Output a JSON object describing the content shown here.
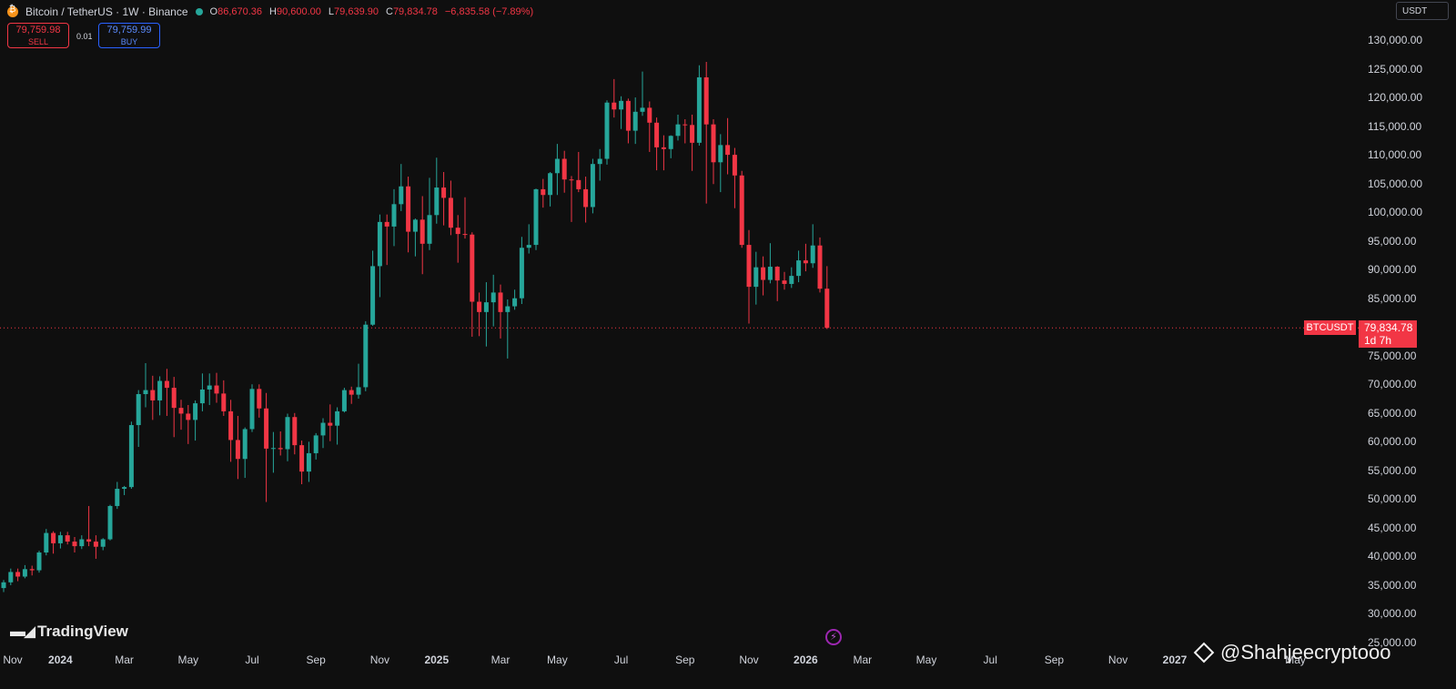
{
  "header": {
    "symbol": "Bitcoin / TetherUS · 1W · Binance",
    "ohlc": [
      {
        "k": "O",
        "v": "86,670.36"
      },
      {
        "k": "H",
        "v": "90,600.00"
      },
      {
        "k": "L",
        "v": "79,639.90"
      },
      {
        "k": "C",
        "v": "79,834.78"
      }
    ],
    "change": "−6,835.58 (−7.89%)"
  },
  "trade": {
    "sell_price": "79,759.98",
    "sell_label": "SELL",
    "spread": "0.01",
    "buy_price": "79,759.99",
    "buy_label": "BUY"
  },
  "currency": "USDT",
  "last_price": {
    "symbol": "BTCUSDT",
    "value": "79,834.78",
    "countdown": "1d 7h"
  },
  "branding": {
    "logo_text": "TradingView",
    "watermark": "@Shahjeecryptooo"
  },
  "colors": {
    "up": "#26a69a",
    "down": "#f23645",
    "background": "#0f0f0f",
    "buy": "#2962ff"
  },
  "chart_data": {
    "type": "candlestick",
    "interval": "1W",
    "y_axis": {
      "labels": [
        "130,000.00",
        "125,000.00",
        "120,000.00",
        "115,000.00",
        "110,000.00",
        "105,000.00",
        "100,000.00",
        "95,000.00",
        "90,000.00",
        "85,000.00",
        "75,000.00",
        "70,000.00",
        "65,000.00",
        "60,000.00",
        "55,000.00",
        "50,000.00",
        "45,000.00",
        "40,000.00",
        "35,000.00",
        "30,000.00",
        "25,000.00"
      ],
      "values": [
        130000,
        125000,
        120000,
        115000,
        110000,
        105000,
        100000,
        95000,
        90000,
        85000,
        75000,
        70000,
        65000,
        60000,
        55000,
        50000,
        45000,
        40000,
        35000,
        30000,
        25000
      ],
      "range": [
        25000,
        130000
      ]
    },
    "x_axis": {
      "labels": [
        {
          "text": "Nov",
          "bold": false,
          "week": -1
        },
        {
          "text": "2024",
          "bold": true,
          "week": 8
        },
        {
          "text": "Mar",
          "bold": false,
          "week": 17
        },
        {
          "text": "May",
          "bold": false,
          "week": 26
        },
        {
          "text": "Jul",
          "bold": false,
          "week": 35
        },
        {
          "text": "Sep",
          "bold": false,
          "week": 44
        },
        {
          "text": "Nov",
          "bold": false,
          "week": 53
        },
        {
          "text": "2025",
          "bold": true,
          "week": 61
        },
        {
          "text": "Mar",
          "bold": false,
          "week": 70
        },
        {
          "text": "May",
          "bold": false,
          "week": 78
        },
        {
          "text": "Jul",
          "bold": false,
          "week": 87
        },
        {
          "text": "Sep",
          "bold": false,
          "week": 96
        },
        {
          "text": "Nov",
          "bold": false,
          "week": 105
        },
        {
          "text": "2026",
          "bold": true,
          "week": 113
        },
        {
          "text": "Mar",
          "bold": false,
          "week": 121
        },
        {
          "text": "May",
          "bold": false,
          "week": 130
        },
        {
          "text": "Jul",
          "bold": false,
          "week": 139
        },
        {
          "text": "Sep",
          "bold": false,
          "week": 148
        },
        {
          "text": "Nov",
          "bold": false,
          "week": 157
        },
        {
          "text": "2027",
          "bold": true,
          "week": 165
        },
        {
          "text": "May",
          "bold": false,
          "week": 182
        }
      ]
    },
    "last_price": 79834.78,
    "candles": [
      [
        34500,
        35900,
        33800,
        35500
      ],
      [
        35500,
        37900,
        35000,
        37300
      ],
      [
        37300,
        37900,
        35700,
        36500
      ],
      [
        36500,
        38500,
        36200,
        37800
      ],
      [
        37800,
        38400,
        36700,
        37600
      ],
      [
        37600,
        41000,
        37200,
        40700
      ],
      [
        40700,
        44800,
        40200,
        44100
      ],
      [
        44100,
        44400,
        40500,
        42300
      ],
      [
        42300,
        44300,
        41400,
        43700
      ],
      [
        43700,
        44300,
        42100,
        42600
      ],
      [
        42600,
        43400,
        40700,
        41800
      ],
      [
        41800,
        43700,
        41300,
        43000
      ],
      [
        43000,
        48800,
        41800,
        42600
      ],
      [
        42600,
        43700,
        39600,
        41700
      ],
      [
        41700,
        43200,
        41100,
        43000
      ],
      [
        43000,
        49000,
        42800,
        48800
      ],
      [
        48800,
        53000,
        48300,
        51800
      ],
      [
        51800,
        52300,
        50700,
        52100
      ],
      [
        52100,
        63500,
        51800,
        62900
      ],
      [
        62900,
        69000,
        59100,
        68300
      ],
      [
        68300,
        73700,
        66000,
        69000
      ],
      [
        69000,
        71500,
        63800,
        67200
      ],
      [
        67200,
        71400,
        64600,
        70600
      ],
      [
        70600,
        72700,
        64500,
        69400
      ],
      [
        69400,
        71300,
        60800,
        65900
      ],
      [
        65900,
        67300,
        62100,
        64900
      ],
      [
        64900,
        66400,
        59600,
        63800
      ],
      [
        63800,
        67200,
        60200,
        66700
      ],
      [
        66700,
        71900,
        65300,
        69100
      ],
      [
        69100,
        71900,
        66400,
        69800
      ],
      [
        69800,
        72000,
        66800,
        68400
      ],
      [
        68400,
        70700,
        64500,
        65300
      ],
      [
        65300,
        67300,
        56500,
        60300
      ],
      [
        60300,
        64500,
        53500,
        57000
      ],
      [
        57000,
        62500,
        53700,
        62200
      ],
      [
        62200,
        70000,
        61700,
        69200
      ],
      [
        69200,
        70000,
        64200,
        65800
      ],
      [
        65800,
        68500,
        49500,
        58800
      ],
      [
        58800,
        61700,
        54600,
        58900
      ],
      [
        58900,
        61800,
        57600,
        58700
      ],
      [
        58700,
        64900,
        56600,
        64300
      ],
      [
        64300,
        65000,
        57800,
        59400
      ],
      [
        59400,
        60200,
        52600,
        54800
      ],
      [
        54800,
        60000,
        53000,
        58000
      ],
      [
        58000,
        61500,
        56900,
        61100
      ],
      [
        61100,
        64100,
        58900,
        63300
      ],
      [
        63300,
        66500,
        60100,
        62800
      ],
      [
        62800,
        66000,
        59500,
        65300
      ],
      [
        65300,
        69400,
        65100,
        69000
      ],
      [
        69000,
        69600,
        66600,
        68200
      ],
      [
        68200,
        73600,
        67500,
        69500
      ],
      [
        69500,
        81000,
        68800,
        80400
      ],
      [
        80400,
        93300,
        80200,
        90600
      ],
      [
        90600,
        99600,
        85200,
        98300
      ],
      [
        98300,
        99600,
        90800,
        97500
      ],
      [
        97500,
        104000,
        94100,
        101400
      ],
      [
        101400,
        108400,
        100200,
        104500
      ],
      [
        104500,
        106200,
        93000,
        96600
      ],
      [
        96600,
        98900,
        92300,
        98700
      ],
      [
        98700,
        102800,
        89200,
        94500
      ],
      [
        94500,
        106000,
        93400,
        99500
      ],
      [
        99500,
        109500,
        98000,
        104300
      ],
      [
        104300,
        107000,
        97700,
        102500
      ],
      [
        102500,
        105500,
        96000,
        97300
      ],
      [
        97300,
        99500,
        91200,
        96200
      ],
      [
        96200,
        102600,
        95400,
        96100
      ],
      [
        96100,
        96500,
        78300,
        84400
      ],
      [
        84400,
        86000,
        78400,
        82600
      ],
      [
        82600,
        87800,
        76600,
        84300
      ],
      [
        84300,
        89100,
        80100,
        86000
      ],
      [
        86000,
        87400,
        78000,
        82600
      ],
      [
        82600,
        84800,
        74500,
        83600
      ],
      [
        83600,
        86500,
        83000,
        85000
      ],
      [
        85000,
        95700,
        84000,
        93800
      ],
      [
        93800,
        97900,
        92800,
        94300
      ],
      [
        94300,
        104100,
        93400,
        104000
      ],
      [
        104000,
        105800,
        100800,
        103000
      ],
      [
        103000,
        107000,
        101000,
        106800
      ],
      [
        106800,
        111900,
        103000,
        109300
      ],
      [
        109300,
        110700,
        103400,
        105700
      ],
      [
        105700,
        106300,
        98300,
        105600
      ],
      [
        105600,
        110500,
        103500,
        104000
      ],
      [
        104000,
        106200,
        98200,
        100900
      ],
      [
        100900,
        109300,
        99800,
        108400
      ],
      [
        108400,
        111000,
        105500,
        109300
      ],
      [
        109300,
        119500,
        108300,
        119100
      ],
      [
        119100,
        123200,
        116500,
        117900
      ],
      [
        117900,
        120200,
        114500,
        119400
      ],
      [
        119400,
        119800,
        112000,
        114200
      ],
      [
        114200,
        120000,
        111900,
        117500
      ],
      [
        117500,
        124500,
        116800,
        118200
      ],
      [
        118200,
        119300,
        110500,
        115600
      ],
      [
        115600,
        116500,
        107300,
        111300
      ],
      [
        111300,
        113400,
        107300,
        111000
      ],
      [
        111000,
        113400,
        109400,
        113300
      ],
      [
        113300,
        117000,
        112500,
        115300
      ],
      [
        115300,
        116200,
        112000,
        115200
      ],
      [
        115200,
        117000,
        107200,
        112100
      ],
      [
        112100,
        125600,
        111600,
        123500
      ],
      [
        123500,
        126200,
        101500,
        115300
      ],
      [
        115300,
        116200,
        104900,
        108700
      ],
      [
        108700,
        113600,
        103500,
        111700
      ],
      [
        111700,
        116400,
        106600,
        110000
      ],
      [
        110000,
        111200,
        100700,
        106400
      ],
      [
        106400,
        107200,
        93800,
        94300
      ],
      [
        94300,
        96900,
        80600,
        87000
      ],
      [
        87000,
        93100,
        83900,
        90400
      ],
      [
        90400,
        92300,
        85500,
        88200
      ],
      [
        88200,
        94600,
        87600,
        90500
      ],
      [
        90500,
        90600,
        84500,
        88100
      ],
      [
        88100,
        89600,
        86500,
        87500
      ],
      [
        87500,
        90400,
        86800,
        88900
      ],
      [
        88900,
        93300,
        87800,
        91600
      ],
      [
        91600,
        94500,
        89700,
        91100
      ],
      [
        91100,
        97900,
        90300,
        94200
      ],
      [
        94200,
        95600,
        86000,
        86670
      ],
      [
        86670,
        90600,
        79640,
        79834.78
      ]
    ]
  }
}
